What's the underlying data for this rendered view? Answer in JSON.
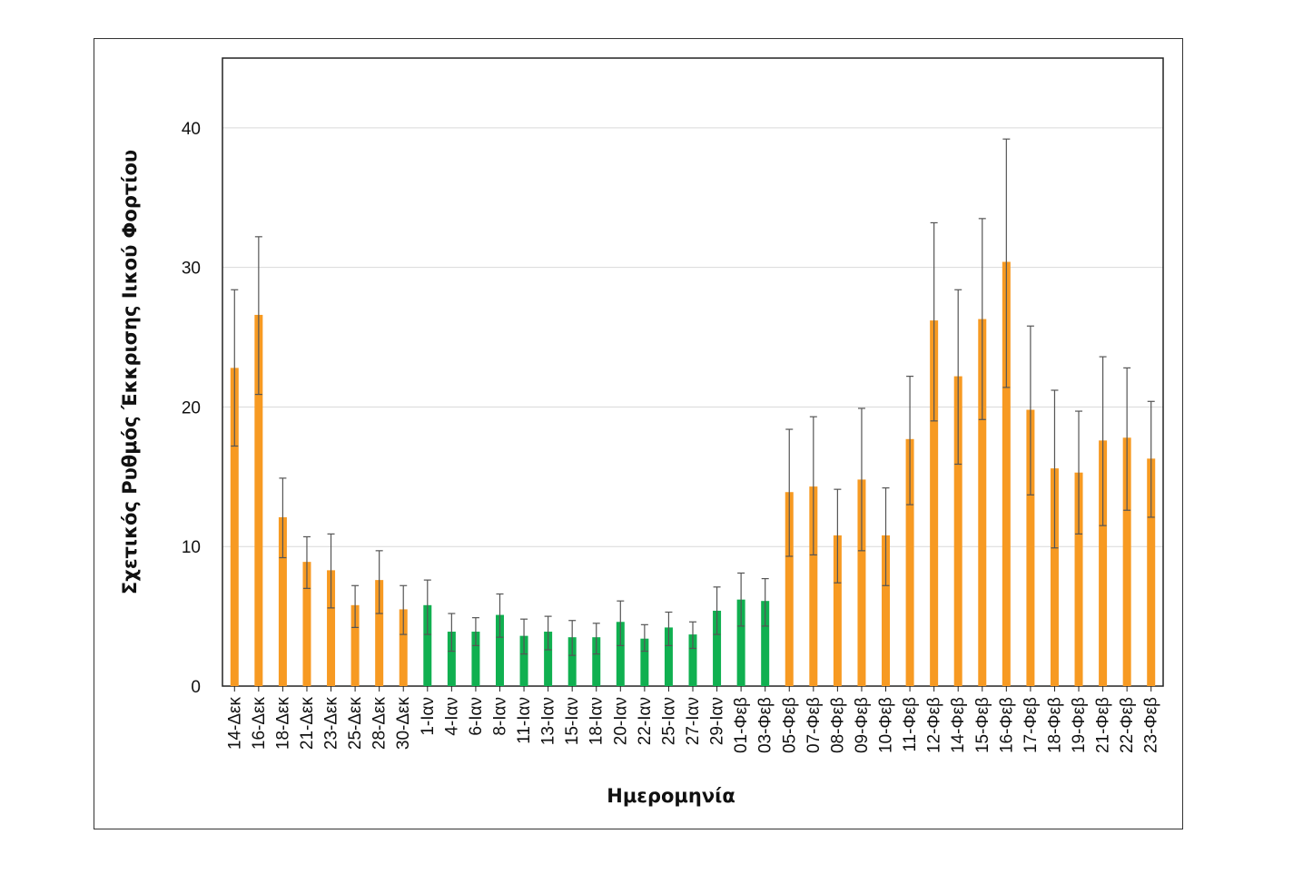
{
  "chart_data": {
    "type": "bar",
    "xlabel": "Ημερομηνία",
    "ylabel": "Σχετικός Ρυθμός Έκκρισης Ιικού Φορτίου",
    "ylim": [
      0,
      45
    ],
    "yticks": [
      0,
      10,
      20,
      30,
      40
    ],
    "grid": true,
    "colors": {
      "elevated": "#f79a22",
      "normal": "#10b050"
    },
    "categories": [
      "14-Δεκ",
      "16-Δεκ",
      "18-Δεκ",
      "21-Δεκ",
      "23-Δεκ",
      "25-Δεκ",
      "28-Δεκ",
      "30-Δεκ",
      "1-Ιαν",
      "4-Ιαν",
      "6-Ιαν",
      "8-Ιαν",
      "11-Ιαν",
      "13-Ιαν",
      "15-Ιαν",
      "18-Ιαν",
      "20-Ιαν",
      "22-Ιαν",
      "25-Ιαν",
      "27-Ιαν",
      "29-Ιαν",
      "01-Φεβ",
      "03-Φεβ",
      "05-Φεβ",
      "07-Φεβ",
      "08-Φεβ",
      "09-Φεβ",
      "10-Φεβ",
      "11-Φεβ",
      "12-Φεβ",
      "14-Φεβ",
      "15-Φεβ",
      "16-Φεβ",
      "17-Φεβ",
      "18-Φεβ",
      "19-Φεβ",
      "21-Φεβ",
      "22-Φεβ",
      "23-Φεβ"
    ],
    "values": [
      22.8,
      26.6,
      12.1,
      8.9,
      8.3,
      5.8,
      7.6,
      5.5,
      5.8,
      3.9,
      3.9,
      5.1,
      3.6,
      3.9,
      3.5,
      3.5,
      4.6,
      3.4,
      4.2,
      3.7,
      5.4,
      6.2,
      6.1,
      13.9,
      14.3,
      10.8,
      14.8,
      10.8,
      17.7,
      26.2,
      22.2,
      26.3,
      30.4,
      19.8,
      15.6,
      15.3,
      17.6,
      17.8,
      16.3
    ],
    "error_low": [
      17.2,
      20.9,
      9.2,
      7.0,
      5.6,
      4.2,
      5.2,
      3.7,
      3.7,
      2.5,
      2.9,
      3.5,
      2.3,
      2.6,
      2.2,
      2.3,
      2.9,
      2.5,
      2.9,
      2.7,
      3.7,
      4.3,
      4.3,
      9.3,
      9.4,
      7.4,
      9.7,
      7.2,
      13.0,
      19.0,
      15.9,
      19.1,
      21.4,
      13.7,
      9.9,
      10.9,
      11.5,
      12.6,
      12.1
    ],
    "error_high": [
      28.4,
      32.2,
      14.9,
      10.7,
      10.9,
      7.2,
      9.7,
      7.2,
      7.6,
      5.2,
      4.9,
      6.6,
      4.8,
      5.0,
      4.7,
      4.5,
      6.1,
      4.4,
      5.3,
      4.6,
      7.1,
      8.1,
      7.7,
      18.4,
      19.3,
      14.1,
      19.9,
      14.2,
      22.2,
      33.2,
      28.4,
      33.5,
      39.2,
      25.8,
      21.2,
      19.7,
      23.6,
      22.8,
      20.4
    ],
    "bar_color_groups": [
      "elevated",
      "elevated",
      "elevated",
      "elevated",
      "elevated",
      "elevated",
      "elevated",
      "elevated",
      "normal",
      "normal",
      "normal",
      "normal",
      "normal",
      "normal",
      "normal",
      "normal",
      "normal",
      "normal",
      "normal",
      "normal",
      "normal",
      "normal",
      "normal",
      "elevated",
      "elevated",
      "elevated",
      "elevated",
      "elevated",
      "elevated",
      "elevated",
      "elevated",
      "elevated",
      "elevated",
      "elevated",
      "elevated",
      "elevated",
      "elevated",
      "elevated",
      "elevated"
    ]
  }
}
